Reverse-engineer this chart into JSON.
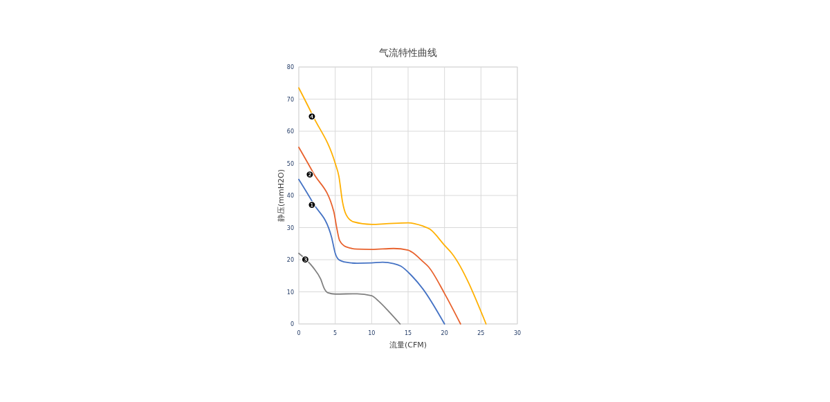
{
  "chart_data": {
    "type": "line",
    "title": "气流特性曲线",
    "xlabel": "流量(CFM)",
    "ylabel": "静压(mmH2O)",
    "xlim": [
      0,
      30
    ],
    "xticks": [
      0,
      5,
      10,
      15,
      20,
      25,
      30
    ],
    "ylim": [
      0,
      80
    ],
    "yticks": [
      0,
      10,
      20,
      30,
      40,
      50,
      60,
      70,
      80
    ],
    "grid": true,
    "series": [
      {
        "color": "#4472c4",
        "x": [
          0,
          2,
          4.5,
          5,
          5.5,
          6.5,
          8,
          10,
          11.5,
          13,
          14,
          15.5,
          17,
          20
        ],
        "values": [
          45,
          37.5,
          27,
          22,
          20,
          19.2,
          18.9,
          19,
          19.2,
          18.8,
          18,
          15,
          11,
          0
        ]
      },
      {
        "color": "#e8612c",
        "x": [
          0,
          2,
          4.8,
          5.2,
          5.6,
          6.5,
          8,
          10,
          13,
          15,
          15.5,
          17,
          17.8,
          20,
          22.2
        ],
        "values": [
          55,
          47,
          35,
          30,
          26,
          24,
          23.3,
          23.2,
          23.5,
          23,
          22.4,
          19.5,
          17.8,
          9.5,
          0
        ]
      },
      {
        "color": "#808080",
        "x": [
          0,
          2,
          3,
          3.5,
          4,
          5,
          8,
          10,
          11,
          12.3,
          13.9
        ],
        "values": [
          22,
          17.5,
          14,
          11,
          9.7,
          9.3,
          9.4,
          8.8,
          7,
          4,
          0
        ]
      },
      {
        "color": "#ffb000",
        "x": [
          0,
          2,
          5,
          5.5,
          6,
          6.5,
          7.5,
          10,
          12,
          15,
          17,
          18,
          20,
          21,
          25.7
        ],
        "values": [
          73.5,
          64.5,
          50,
          46,
          38,
          34,
          31.8,
          31,
          31.2,
          31.5,
          30.5,
          29.5,
          24.5,
          22,
          0
        ]
      }
    ],
    "annotations": [
      {
        "text": "❶",
        "x": 1.8,
        "y": 37
      },
      {
        "text": "❷",
        "x": 1.5,
        "y": 46.5
      },
      {
        "text": "❸",
        "x": 0.9,
        "y": 19.9
      },
      {
        "text": "❹",
        "x": 1.8,
        "y": 64.5
      }
    ]
  }
}
